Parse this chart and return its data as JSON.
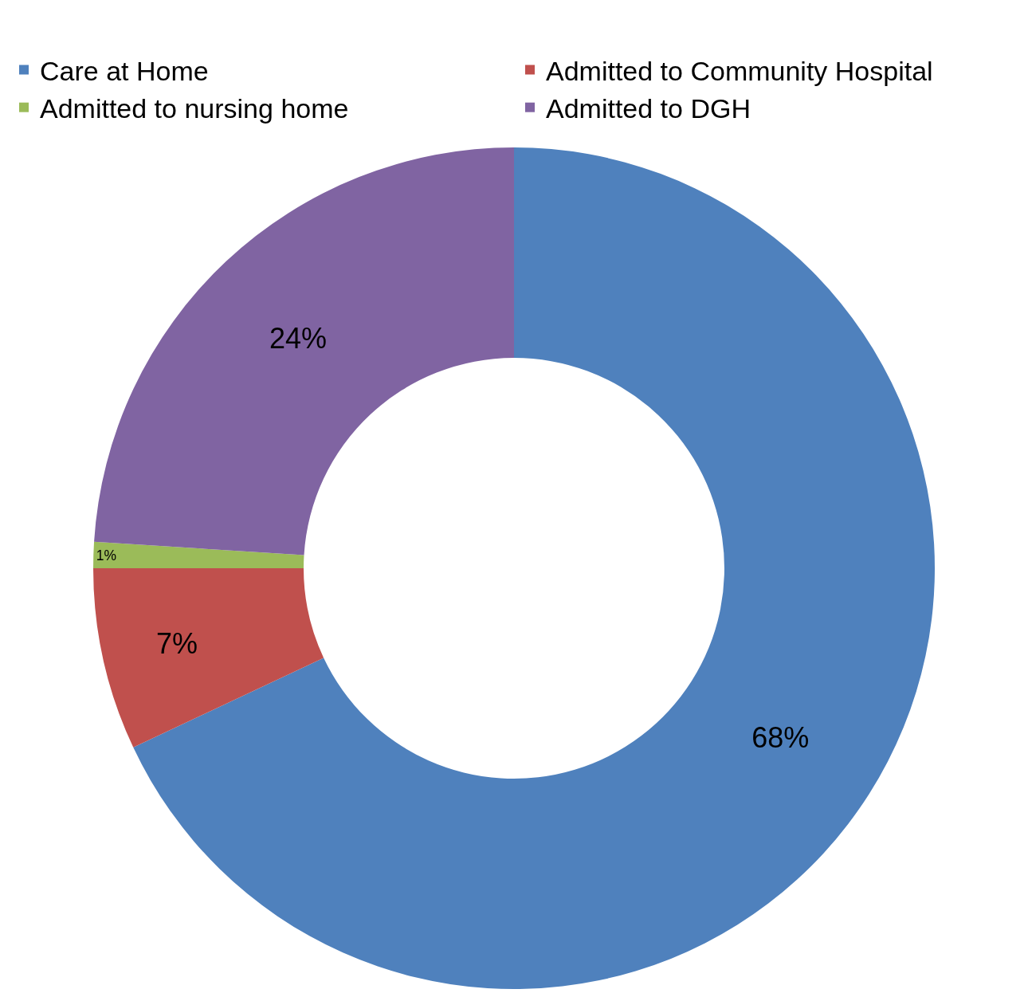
{
  "chart_data": {
    "type": "donut",
    "categories": [
      "Care at Home",
      "Admitted to Community Hospital",
      "Admitted to nursing home",
      "Admitted to DGH"
    ],
    "values": [
      68,
      7,
      1,
      24
    ],
    "colors": [
      "#4f81bd",
      "#c0504d",
      "#9bbb59",
      "#8064a2"
    ],
    "value_labels": [
      "68%",
      "7%",
      "1%",
      "24%"
    ],
    "legend": "top"
  }
}
